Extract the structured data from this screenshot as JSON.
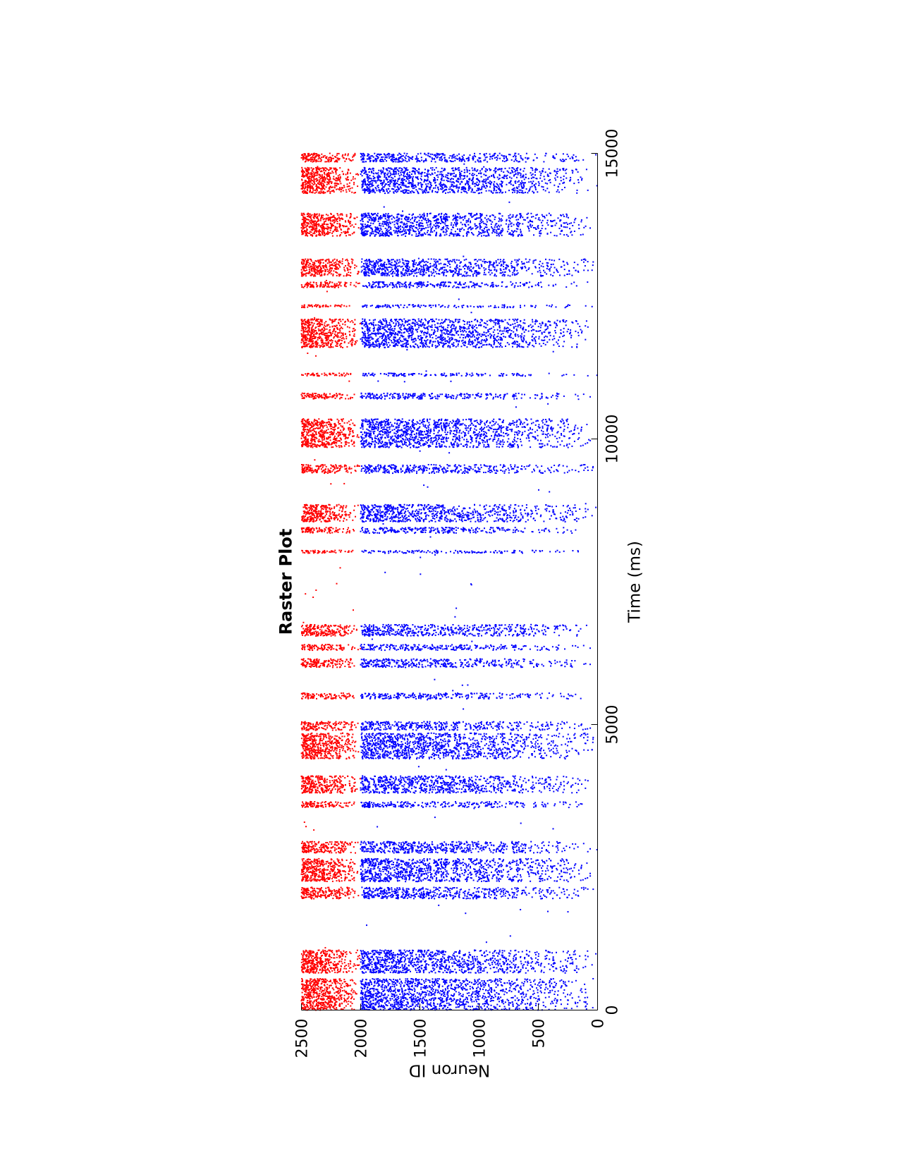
{
  "chart_data": {
    "type": "scatter",
    "title": "Raster Plot",
    "xlabel": "Time (ms)",
    "ylabel": "Neuron ID",
    "xlim": [
      0,
      15000
    ],
    "ylim": [
      0,
      2500
    ],
    "x_ticks": [
      "0",
      "5000",
      "10000",
      "15000"
    ],
    "y_ticks": [
      "0",
      "500",
      "1000",
      "1500",
      "2000",
      "2500"
    ],
    "grid": false,
    "legend": "none",
    "orientation": "rotated 90 degrees counter-clockwise",
    "series": [
      {
        "color": "#0000ff",
        "neuron_range": [
          1,
          2000
        ],
        "density": "high near neuron 2000, decreasing toward neuron 0"
      },
      {
        "color": "#ff0000",
        "neuron_range": [
          2001,
          2500
        ],
        "density": "high near neuron 2500, decreasing toward neuron 2000"
      }
    ],
    "bursts_ms": [
      [
        0,
        550
      ],
      [
        650,
        1050
      ],
      [
        1950,
        2150
      ],
      [
        2250,
        2650
      ],
      [
        2750,
        2950
      ],
      [
        3550,
        3650
      ],
      [
        3800,
        4100
      ],
      [
        4400,
        4850
      ],
      [
        4900,
        5050
      ],
      [
        5450,
        5550
      ],
      [
        6000,
        6150
      ],
      [
        6300,
        6400
      ],
      [
        6550,
        6750
      ],
      [
        8000,
        8050
      ],
      [
        8350,
        8450
      ],
      [
        8550,
        8850
      ],
      [
        9400,
        9550
      ],
      [
        9850,
        10350
      ],
      [
        10700,
        10800
      ],
      [
        11100,
        11150
      ],
      [
        11600,
        12100
      ],
      [
        12300,
        12350
      ],
      [
        12650,
        12750
      ],
      [
        12850,
        13150
      ],
      [
        13550,
        13950
      ],
      [
        14300,
        14750
      ],
      [
        14850,
        15000
      ]
    ]
  }
}
